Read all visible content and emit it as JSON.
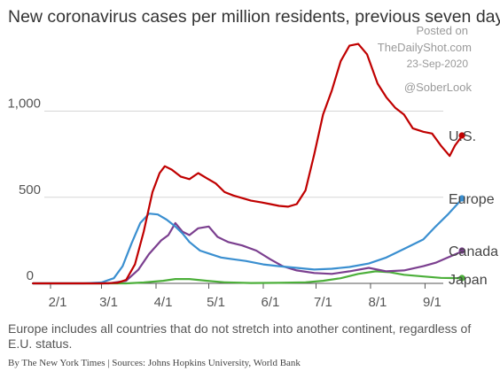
{
  "header": {
    "title": "New coronavirus cases per million residents, previous seven days"
  },
  "watermark": {
    "posted_on": "Posted on",
    "site": "TheDailyShot.com",
    "date": "23-Sep-2020",
    "handle": "@SoberLook"
  },
  "footer": {
    "note": "Europe includes all countries that do not stretch into another continent, regardless of E.U. status.",
    "byline": "By The New York Times | Sources: Johns Hopkins University, World Bank"
  },
  "chart_data": {
    "type": "line",
    "x_ticks": [
      "2/1",
      "3/1",
      "4/1",
      "5/1",
      "6/1",
      "7/1",
      "8/1",
      "9/1"
    ],
    "y_ticks": [
      {
        "value": 0,
        "label": "0"
      },
      {
        "value": 500,
        "label": "500"
      },
      {
        "value": 1000,
        "label": "1,000"
      }
    ],
    "ylim": [
      0,
      1500
    ],
    "grid": "horizontal",
    "legend": "end-of-line labels",
    "series": [
      {
        "name": "U.S.",
        "color": "#c00000",
        "points": [
          [
            "2020-01-22",
            0
          ],
          [
            "2020-02-15",
            0
          ],
          [
            "2020-03-01",
            0
          ],
          [
            "2020-03-10",
            3
          ],
          [
            "2020-03-15",
            20
          ],
          [
            "2020-03-20",
            110
          ],
          [
            "2020-03-25",
            300
          ],
          [
            "2020-03-30",
            530
          ],
          [
            "2020-04-03",
            640
          ],
          [
            "2020-04-06",
            680
          ],
          [
            "2020-04-10",
            660
          ],
          [
            "2020-04-15",
            620
          ],
          [
            "2020-04-20",
            605
          ],
          [
            "2020-04-25",
            640
          ],
          [
            "2020-04-30",
            610
          ],
          [
            "2020-05-05",
            580
          ],
          [
            "2020-05-10",
            530
          ],
          [
            "2020-05-15",
            510
          ],
          [
            "2020-05-20",
            495
          ],
          [
            "2020-05-25",
            480
          ],
          [
            "2020-05-31",
            470
          ],
          [
            "2020-06-05",
            460
          ],
          [
            "2020-06-10",
            450
          ],
          [
            "2020-06-15",
            445
          ],
          [
            "2020-06-20",
            460
          ],
          [
            "2020-06-25",
            540
          ],
          [
            "2020-06-30",
            750
          ],
          [
            "2020-07-05",
            980
          ],
          [
            "2020-07-10",
            1120
          ],
          [
            "2020-07-15",
            1290
          ],
          [
            "2020-07-20",
            1380
          ],
          [
            "2020-07-25",
            1390
          ],
          [
            "2020-07-30",
            1330
          ],
          [
            "2020-08-05",
            1160
          ],
          [
            "2020-08-10",
            1080
          ],
          [
            "2020-08-15",
            1020
          ],
          [
            "2020-08-20",
            980
          ],
          [
            "2020-08-25",
            900
          ],
          [
            "2020-08-31",
            880
          ],
          [
            "2020-09-05",
            870
          ],
          [
            "2020-09-10",
            800
          ],
          [
            "2020-09-15",
            740
          ],
          [
            "2020-09-18",
            800
          ],
          [
            "2020-09-22",
            855
          ]
        ]
      },
      {
        "name": "Europe",
        "color": "#3a8fd0",
        "points": [
          [
            "2020-01-22",
            0
          ],
          [
            "2020-02-20",
            0
          ],
          [
            "2020-03-01",
            5
          ],
          [
            "2020-03-08",
            30
          ],
          [
            "2020-03-13",
            100
          ],
          [
            "2020-03-18",
            230
          ],
          [
            "2020-03-23",
            350
          ],
          [
            "2020-03-28",
            405
          ],
          [
            "2020-04-02",
            400
          ],
          [
            "2020-04-07",
            370
          ],
          [
            "2020-04-12",
            330
          ],
          [
            "2020-04-16",
            290
          ],
          [
            "2020-04-20",
            240
          ],
          [
            "2020-04-26",
            190
          ],
          [
            "2020-05-02",
            170
          ],
          [
            "2020-05-08",
            150
          ],
          [
            "2020-05-15",
            140
          ],
          [
            "2020-05-22",
            130
          ],
          [
            "2020-06-01",
            110
          ],
          [
            "2020-06-10",
            100
          ],
          [
            "2020-06-20",
            90
          ],
          [
            "2020-06-30",
            80
          ],
          [
            "2020-07-10",
            85
          ],
          [
            "2020-07-20",
            95
          ],
          [
            "2020-07-31",
            115
          ],
          [
            "2020-08-10",
            150
          ],
          [
            "2020-08-20",
            200
          ],
          [
            "2020-08-31",
            255
          ],
          [
            "2020-09-07",
            330
          ],
          [
            "2020-09-14",
            400
          ],
          [
            "2020-09-22",
            490
          ]
        ]
      },
      {
        "name": "Canada",
        "color": "#7b3f8f",
        "points": [
          [
            "2020-01-22",
            0
          ],
          [
            "2020-03-05",
            0
          ],
          [
            "2020-03-15",
            15
          ],
          [
            "2020-03-22",
            80
          ],
          [
            "2020-03-28",
            170
          ],
          [
            "2020-04-04",
            250
          ],
          [
            "2020-04-08",
            280
          ],
          [
            "2020-04-12",
            350
          ],
          [
            "2020-04-16",
            300
          ],
          [
            "2020-04-20",
            280
          ],
          [
            "2020-04-25",
            320
          ],
          [
            "2020-05-01",
            330
          ],
          [
            "2020-05-06",
            270
          ],
          [
            "2020-05-12",
            240
          ],
          [
            "2020-05-20",
            220
          ],
          [
            "2020-05-28",
            190
          ],
          [
            "2020-06-05",
            140
          ],
          [
            "2020-06-12",
            100
          ],
          [
            "2020-06-20",
            75
          ],
          [
            "2020-06-30",
            60
          ],
          [
            "2020-07-10",
            55
          ],
          [
            "2020-07-20",
            70
          ],
          [
            "2020-07-31",
            90
          ],
          [
            "2020-08-10",
            70
          ],
          [
            "2020-08-20",
            75
          ],
          [
            "2020-08-31",
            100
          ],
          [
            "2020-09-07",
            120
          ],
          [
            "2020-09-14",
            150
          ],
          [
            "2020-09-22",
            185
          ]
        ]
      },
      {
        "name": "Japan",
        "color": "#4caf3a",
        "points": [
          [
            "2020-01-22",
            0
          ],
          [
            "2020-03-15",
            0
          ],
          [
            "2020-03-25",
            5
          ],
          [
            "2020-04-05",
            15
          ],
          [
            "2020-04-12",
            25
          ],
          [
            "2020-04-20",
            25
          ],
          [
            "2020-04-30",
            15
          ],
          [
            "2020-05-10",
            6
          ],
          [
            "2020-05-25",
            2
          ],
          [
            "2020-06-10",
            3
          ],
          [
            "2020-06-25",
            6
          ],
          [
            "2020-07-05",
            15
          ],
          [
            "2020-07-15",
            30
          ],
          [
            "2020-07-25",
            55
          ],
          [
            "2020-08-04",
            70
          ],
          [
            "2020-08-12",
            65
          ],
          [
            "2020-08-20",
            50
          ],
          [
            "2020-08-31",
            40
          ],
          [
            "2020-09-10",
            32
          ],
          [
            "2020-09-22",
            30
          ]
        ]
      }
    ]
  }
}
